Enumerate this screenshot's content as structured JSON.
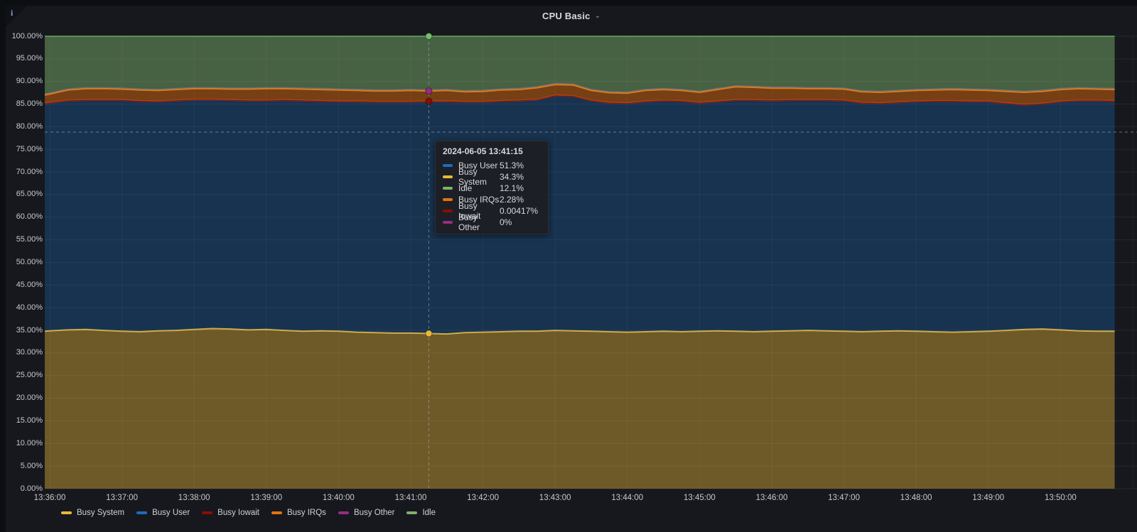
{
  "panel": {
    "title": "CPU Basic",
    "chevron": "⌄",
    "info_icon": "i"
  },
  "colors": {
    "page_bg": "#0d0e12",
    "panel_bg": "#16181d",
    "grid_h": "rgba(255,255,255,0.07)",
    "grid_v": "rgba(255,255,255,0.05)",
    "crosshair": "rgba(170,184,196,0.55)",
    "busy_system": "#EAB839",
    "busy_user": "#1F6CBF",
    "busy_iowait": "#890F02",
    "busy_irqs": "#E8720C",
    "busy_other": "#962D82",
    "idle": "#73BF69",
    "idle_swatch": "#7EB26D"
  },
  "y_axis": {
    "min": 0,
    "max": 100,
    "step": 5,
    "labels": [
      "100.00%",
      "95.00%",
      "90.00%",
      "85.00%",
      "80.00%",
      "75.00%",
      "70.00%",
      "65.00%",
      "60.00%",
      "55.00%",
      "50.00%",
      "45.00%",
      "40.00%",
      "35.00%",
      "30.00%",
      "25.00%",
      "20.00%",
      "15.00%",
      "10.00%",
      "5.00%",
      "0.00%"
    ]
  },
  "x_axis": {
    "labels": [
      "13:36:00",
      "13:37:00",
      "13:38:00",
      "13:39:00",
      "13:40:00",
      "13:41:00",
      "13:42:00",
      "13:43:00",
      "13:44:00",
      "13:45:00",
      "13:46:00",
      "13:47:00",
      "13:48:00",
      "13:49:00",
      "13:50:00"
    ]
  },
  "legend": [
    {
      "label": "Busy System",
      "color": "#EAB839"
    },
    {
      "label": "Busy User",
      "color": "#1F6CBF"
    },
    {
      "label": "Busy Iowait",
      "color": "#890F02"
    },
    {
      "label": "Busy IRQs",
      "color": "#E8720C"
    },
    {
      "label": "Busy Other",
      "color": "#962D82"
    },
    {
      "label": "Idle",
      "color": "#7EB26D"
    }
  ],
  "tooltip": {
    "timestamp": "2024-06-05 13:41:15",
    "rows": [
      {
        "label": "Busy User",
        "value": "51.3%",
        "color": "#1F6CBF"
      },
      {
        "label": "Busy System",
        "value": "34.3%",
        "color": "#EAB839"
      },
      {
        "label": "Idle",
        "value": "12.1%",
        "color": "#7EB26D"
      },
      {
        "label": "Busy IRQs",
        "value": "2.28%",
        "color": "#E8720C"
      },
      {
        "label": "Busy Iowait",
        "value": "0.00417%",
        "color": "#890F02"
      },
      {
        "label": "Busy Other",
        "value": "0%",
        "color": "#962D82"
      }
    ]
  },
  "crosshair": {
    "point_index": 22,
    "time": "13:41:15",
    "horizontal_percent": 78.8
  },
  "chart_data": {
    "type": "area",
    "stacked": true,
    "unit": "percent",
    "ylim": [
      0,
      100
    ],
    "x_start": "13:35:45",
    "x_interval_seconds": 15,
    "grid": true,
    "legend_position": "bottom",
    "series": [
      {
        "name": "Busy System",
        "color": "#EAB839",
        "values": [
          34.6,
          34.9,
          35.1,
          35.2,
          35.0,
          34.8,
          34.7,
          34.9,
          35.0,
          35.2,
          35.4,
          35.3,
          35.1,
          35.2,
          35.0,
          34.8,
          34.9,
          34.8,
          34.6,
          34.5,
          34.4,
          34.4,
          34.3,
          34.2,
          34.5,
          34.6,
          34.7,
          34.8,
          34.8,
          35.0,
          34.9,
          34.8,
          34.7,
          34.6,
          34.7,
          34.8,
          34.7,
          34.8,
          34.9,
          34.8,
          34.7,
          34.8,
          34.9,
          35.0,
          34.9,
          34.8,
          34.7,
          34.8,
          34.9,
          34.8,
          34.7,
          34.6,
          34.7,
          34.8,
          35.0,
          35.2,
          35.3,
          35.1,
          34.9,
          34.8,
          34.8
        ]
      },
      {
        "name": "Busy User",
        "color": "#1F6CBF",
        "values": [
          50.3,
          50.4,
          50.7,
          50.7,
          50.9,
          51.1,
          51.0,
          50.7,
          50.8,
          50.8,
          50.6,
          50.6,
          50.7,
          50.6,
          50.9,
          51.0,
          50.8,
          50.8,
          51.0,
          51.0,
          51.1,
          51.1,
          51.3,
          51.4,
          51.0,
          50.9,
          51.0,
          51.0,
          51.2,
          51.9,
          51.9,
          51.0,
          50.6,
          50.6,
          50.9,
          51.0,
          51.0,
          50.5,
          50.7,
          51.1,
          51.2,
          51.0,
          51.0,
          50.9,
          51.0,
          51.0,
          50.6,
          50.4,
          50.5,
          50.8,
          51.0,
          51.1,
          50.9,
          50.8,
          50.2,
          49.7,
          49.8,
          50.5,
          50.9,
          51.0,
          50.9
        ]
      },
      {
        "name": "Busy Iowait",
        "color": "#890F02",
        "constant_value": 0.004
      },
      {
        "name": "Busy IRQs",
        "color": "#E8720C",
        "values": [
          1.5,
          1.9,
          2.3,
          2.5,
          2.5,
          2.4,
          2.4,
          2.4,
          2.4,
          2.4,
          2.4,
          2.4,
          2.5,
          2.6,
          2.5,
          2.5,
          2.5,
          2.5,
          2.4,
          2.4,
          2.4,
          2.5,
          2.28,
          2.4,
          2.2,
          2.3,
          2.4,
          2.4,
          2.6,
          2.4,
          2.4,
          2.2,
          2.2,
          2.2,
          2.4,
          2.4,
          2.3,
          2.3,
          2.6,
          2.9,
          2.8,
          2.7,
          2.6,
          2.5,
          2.5,
          2.5,
          2.4,
          2.4,
          2.4,
          2.4,
          2.4,
          2.5,
          2.5,
          2.4,
          2.6,
          2.7,
          2.7,
          2.6,
          2.6,
          2.5,
          2.5
        ]
      },
      {
        "name": "Busy Other",
        "color": "#962D82",
        "constant_value": 0
      },
      {
        "name": "Idle",
        "color": "#73BF69",
        "remainder_to": 100
      }
    ]
  }
}
